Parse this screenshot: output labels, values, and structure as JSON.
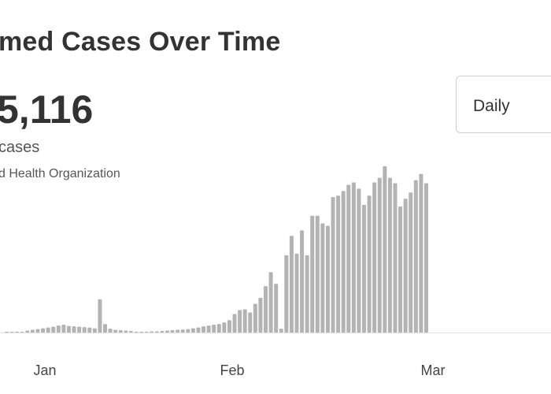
{
  "header": {
    "title": "med Cases Over Time",
    "total": "5,116",
    "subtitle": "cases",
    "source": "d Health Organization"
  },
  "range_select": {
    "selected": "Daily"
  },
  "colors": {
    "bar": "#b3b3b3",
    "baseline": "#e0e0e0",
    "text": "#333333"
  },
  "chart_data": {
    "type": "bar",
    "x_tick_labels": [
      "Jan",
      "Feb",
      "Mar"
    ],
    "values": [
      0.05,
      0.05,
      0.05,
      0.1,
      0.25,
      0.35,
      0.45,
      0.55,
      0.65,
      0.75,
      0.9,
      1.0,
      0.85,
      0.8,
      0.75,
      0.7,
      0.65,
      0.55,
      4.3,
      1.1,
      0.5,
      0.35,
      0.3,
      0.25,
      0.2,
      0.1,
      0.1,
      0.1,
      0.15,
      0.15,
      0.2,
      0.25,
      0.3,
      0.35,
      0.4,
      0.45,
      0.55,
      0.65,
      0.8,
      0.9,
      1.0,
      1.1,
      1.3,
      1.6,
      2.4,
      2.9,
      3.0,
      2.6,
      3.7,
      4.5,
      6.0,
      7.8,
      6.3,
      0.5,
      10.0,
      12.5,
      10.2,
      13.2,
      10.0,
      15.1,
      15.1,
      14.1,
      13.8,
      17.5,
      17.7,
      18.3,
      19.1,
      19.4,
      18.6,
      16.5,
      17.7,
      19.4,
      20.0,
      21.5,
      20.0,
      19.3,
      16.3,
      17.3,
      18.1,
      19.7,
      20.5,
      19.3
    ],
    "ylim": [
      0,
      22
    ]
  }
}
